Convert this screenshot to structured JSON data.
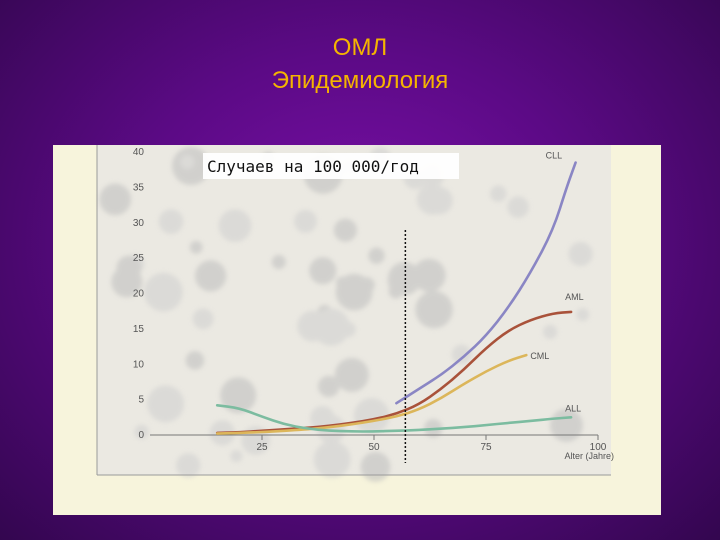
{
  "slide": {
    "title_line1": "ОМЛ",
    "title_line2": "Эпидемиология"
  },
  "colors": {
    "title": "#f5b400",
    "CLL": "#8a86c4",
    "AML": "#a9523a",
    "CML": "#dcb65a",
    "ALL": "#7cbca0"
  },
  "chart_data": {
    "type": "line",
    "ylabel": "Случаев на 100 000/год",
    "xlabel": "Alter (Jahre)",
    "xlim": [
      0,
      100
    ],
    "ylim": [
      0,
      40
    ],
    "xticks": [
      "25",
      "50",
      "75",
      "100"
    ],
    "yticks": [
      "0",
      "5",
      "10",
      "15",
      "20",
      "25",
      "30",
      "35",
      "40"
    ],
    "vertical_marker_x": 57,
    "series": [
      {
        "name": "CLL",
        "color": "#8a86c4",
        "x": [
          55,
          60,
          65,
          70,
          75,
          80,
          85,
          90,
          93,
          95
        ],
        "y": [
          4.5,
          6.5,
          8.5,
          11,
          14,
          18,
          23,
          29,
          35,
          38.5
        ]
      },
      {
        "name": "AML",
        "color": "#a9523a",
        "x": [
          15,
          20,
          25,
          30,
          35,
          40,
          45,
          50,
          55,
          60,
          65,
          70,
          75,
          80,
          85,
          90,
          94
        ],
        "y": [
          0.3,
          0.4,
          0.6,
          0.8,
          1.0,
          1.3,
          1.7,
          2.2,
          3.0,
          4.3,
          6.5,
          9.2,
          12.3,
          14.8,
          16.3,
          17.2,
          17.4
        ]
      },
      {
        "name": "CML",
        "color": "#dcb65a",
        "x": [
          15,
          25,
          35,
          40,
          45,
          50,
          55,
          60,
          65,
          70,
          75,
          80,
          84
        ],
        "y": [
          0.2,
          0.4,
          0.8,
          1.1,
          1.5,
          2.0,
          2.6,
          3.6,
          5.2,
          7.2,
          9.0,
          10.5,
          11.3
        ]
      },
      {
        "name": "ALL",
        "color": "#7cbca0",
        "x": [
          15,
          20,
          25,
          30,
          35,
          40,
          45,
          50,
          55,
          60,
          65,
          70,
          75,
          80,
          85,
          90,
          94
        ],
        "y": [
          4.2,
          3.8,
          2.6,
          1.5,
          0.9,
          0.6,
          0.5,
          0.5,
          0.6,
          0.7,
          0.9,
          1.1,
          1.4,
          1.7,
          2.0,
          2.3,
          2.5
        ]
      }
    ]
  }
}
